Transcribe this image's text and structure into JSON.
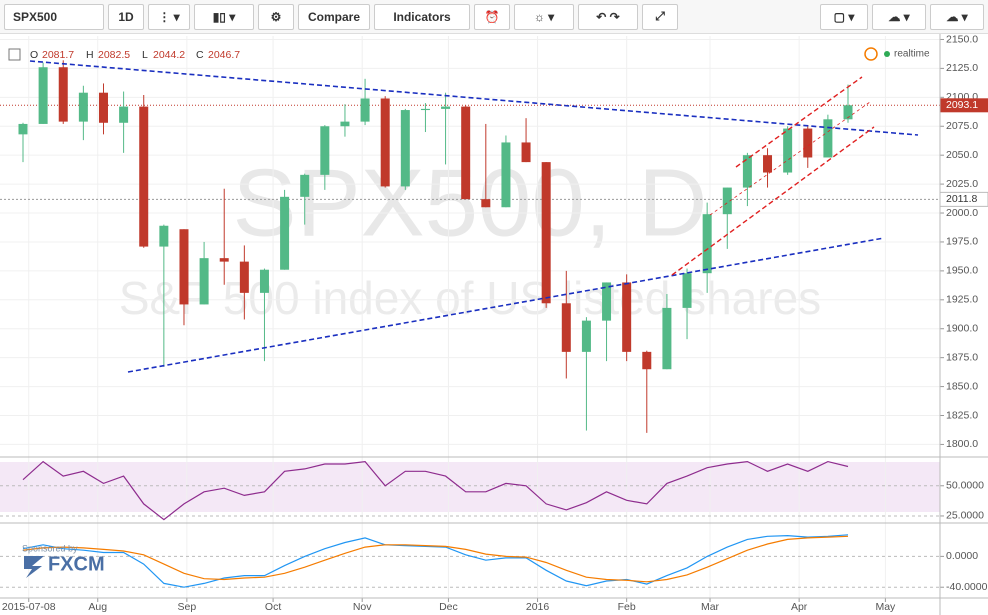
{
  "toolbar": {
    "symbol": "SPX500",
    "interval": "1D",
    "compare": "Compare",
    "indicators": "Indicators"
  },
  "legend": {
    "symbol": "SPX500",
    "o_label": "O",
    "o": "2081.7",
    "h_label": "H",
    "h": "2082.5",
    "l_label": "L",
    "l": "2044.2",
    "c_label": "C",
    "c": "2046.7"
  },
  "status": "realtime",
  "watermark": {
    "title": "SPX500, D",
    "subtitle": "S&P 500 index of US listed shares"
  },
  "sponsor": {
    "caption": "Sponsored by",
    "brand": "FXCM"
  },
  "chart_data": [
    {
      "type": "candlestick",
      "up_color": "#53b987",
      "down_color": "#c0392b",
      "grid": true,
      "xlim": [
        "2015-06-28",
        "2016-05-20"
      ],
      "ylim": [
        1790,
        2153
      ],
      "yticks": [
        {
          "value": 1800,
          "label": "1800.0"
        },
        {
          "value": 1825,
          "label": "1825.0"
        },
        {
          "value": 1850,
          "label": "1850.0"
        },
        {
          "value": 1875,
          "label": "1875.0"
        },
        {
          "value": 1900,
          "label": "1900.0"
        },
        {
          "value": 1925,
          "label": "1925.0"
        },
        {
          "value": 1950,
          "label": "1950.0"
        },
        {
          "value": 1975,
          "label": "1975.0"
        },
        {
          "value": 2000,
          "label": "2000.0"
        },
        {
          "value": 2025,
          "label": "2025.0"
        },
        {
          "value": 2050,
          "label": "2050.0"
        },
        {
          "value": 2075,
          "label": "2075.0"
        },
        {
          "value": 2100,
          "label": "2100.0"
        },
        {
          "value": 2125,
          "label": "2125.0"
        },
        {
          "value": 2150,
          "label": "2150.0"
        }
      ],
      "xticks": [
        {
          "value": "2015-07-08",
          "label": "2015-07-08"
        },
        {
          "value": "2015-08-01",
          "label": "Aug"
        },
        {
          "value": "2015-09-01",
          "label": "Sep"
        },
        {
          "value": "2015-10-01",
          "label": "Oct"
        },
        {
          "value": "2015-11-01",
          "label": "Nov"
        },
        {
          "value": "2015-12-01",
          "label": "Dec"
        },
        {
          "value": "2016-01-01",
          "label": "2016"
        },
        {
          "value": "2016-02-01",
          "label": "Feb"
        },
        {
          "value": "2016-03-01",
          "label": "Mar"
        },
        {
          "value": "2016-04-01",
          "label": "Apr"
        },
        {
          "value": "2016-05-01",
          "label": "May"
        }
      ],
      "last_price": {
        "value": 2093.1,
        "label": "2093.1"
      },
      "level": {
        "value": 2011.8,
        "label": "2011.8"
      },
      "x": [
        "2015-07-06",
        "2015-07-13",
        "2015-07-20",
        "2015-07-27",
        "2015-08-03",
        "2015-08-10",
        "2015-08-17",
        "2015-08-24",
        "2015-08-31",
        "2015-09-07",
        "2015-09-14",
        "2015-09-21",
        "2015-09-28",
        "2015-10-05",
        "2015-10-12",
        "2015-10-19",
        "2015-10-26",
        "2015-11-02",
        "2015-11-09",
        "2015-11-16",
        "2015-11-23",
        "2015-11-30",
        "2015-12-07",
        "2015-12-14",
        "2015-12-21",
        "2015-12-28",
        "2016-01-04",
        "2016-01-11",
        "2016-01-18",
        "2016-01-25",
        "2016-02-01",
        "2016-02-08",
        "2016-02-15",
        "2016-02-22",
        "2016-02-29",
        "2016-03-07",
        "2016-03-14",
        "2016-03-21",
        "2016-03-28",
        "2016-04-04",
        "2016-04-11",
        "2016-04-18"
      ],
      "open": [
        2068,
        2077,
        2126,
        2079,
        2104,
        2078,
        2092,
        1971,
        1986,
        1921,
        1961,
        1958,
        1931,
        1951,
        2014,
        2033,
        2075,
        2079,
        2099,
        2023,
        2089,
        2090,
        2092,
        2012,
        2005,
        2061,
        2044,
        1922,
        1880,
        1907,
        1940,
        1880,
        1865,
        1918,
        1948,
        1999,
        2022,
        2050,
        2035,
        2073,
        2048,
        2081
      ],
      "high": [
        2078,
        2130,
        2132,
        2110,
        2112,
        2105,
        2102,
        1990,
        1986,
        1975,
        2021,
        1972,
        1952,
        2020,
        2034,
        2076,
        2094,
        2116,
        2101,
        2090,
        2095,
        2104,
        2093,
        2077,
        2067,
        2082,
        2044,
        1950,
        1910,
        1940,
        1947,
        1881,
        1930,
        1952,
        2009,
        2022,
        2052,
        2056,
        2075,
        2076,
        2085,
        2111
      ],
      "low": [
        2044,
        2077,
        2077,
        2063,
        2068,
        2052,
        1970,
        1867,
        1903,
        1921,
        1938,
        1908,
        1872,
        1951,
        1990,
        2020,
        2066,
        2076,
        2022,
        2020,
        2070,
        2042,
        2012,
        2005,
        2005,
        2044,
        1918,
        1857,
        1812,
        1872,
        1872,
        1810,
        1865,
        1891,
        1931,
        1969,
        2006,
        2022,
        2033,
        2039,
        2048,
        2078
      ],
      "close": [
        2077,
        2126,
        2079,
        2104,
        2078,
        2092,
        1971,
        1989,
        1921,
        1961,
        1958,
        1931,
        1951,
        2014,
        2033,
        2075,
        2079,
        2099,
        2023,
        2089,
        2090,
        2092,
        2012,
        2005,
        2061,
        2044,
        1922,
        1880,
        1907,
        1940,
        1880,
        1865,
        1918,
        1948,
        1999,
        2022,
        2050,
        2035,
        2073,
        2048,
        2081,
        2093.1
      ]
    },
    {
      "type": "line",
      "ylim": [
        20,
        73
      ],
      "yticks": [
        {
          "value": 25,
          "label": "25.0000"
        },
        {
          "value": 50,
          "label": "50.0000"
        }
      ],
      "series": [
        {
          "color": "#8e2c8e",
          "values": [
            55,
            70,
            58,
            62,
            52,
            58,
            35,
            22,
            35,
            45,
            48,
            42,
            45,
            62,
            64,
            68,
            68,
            70,
            50,
            62,
            62,
            58,
            45,
            45,
            52,
            50,
            35,
            30,
            36,
            45,
            38,
            35,
            52,
            58,
            65,
            68,
            70,
            62,
            68,
            62,
            70,
            66
          ]
        }
      ]
    },
    {
      "type": "line",
      "ylim": [
        -54,
        42
      ],
      "yticks": [
        {
          "value": -40,
          "label": "-40.0000"
        },
        {
          "value": 0,
          "label": "0.0000"
        }
      ],
      "series": [
        {
          "color": "#2196f3",
          "values": [
            10,
            15,
            10,
            8,
            5,
            5,
            -10,
            -35,
            -40,
            -35,
            -28,
            -25,
            -25,
            -12,
            0,
            10,
            18,
            24,
            15,
            14,
            13,
            12,
            2,
            -5,
            -2,
            -2,
            -18,
            -32,
            -38,
            -32,
            -30,
            -36,
            -25,
            -15,
            0,
            12,
            22,
            26,
            27,
            25,
            26,
            28
          ]
        },
        {
          "color": "#f57c00",
          "values": [
            8,
            11,
            12,
            11,
            9,
            7,
            2,
            -10,
            -22,
            -29,
            -30,
            -28,
            -27,
            -22,
            -14,
            -5,
            4,
            12,
            15,
            15,
            14,
            13,
            9,
            3,
            0,
            -1,
            -8,
            -18,
            -27,
            -30,
            -31,
            -33,
            -30,
            -24,
            -14,
            -3,
            8,
            16,
            22,
            24,
            25,
            26
          ]
        }
      ]
    }
  ]
}
